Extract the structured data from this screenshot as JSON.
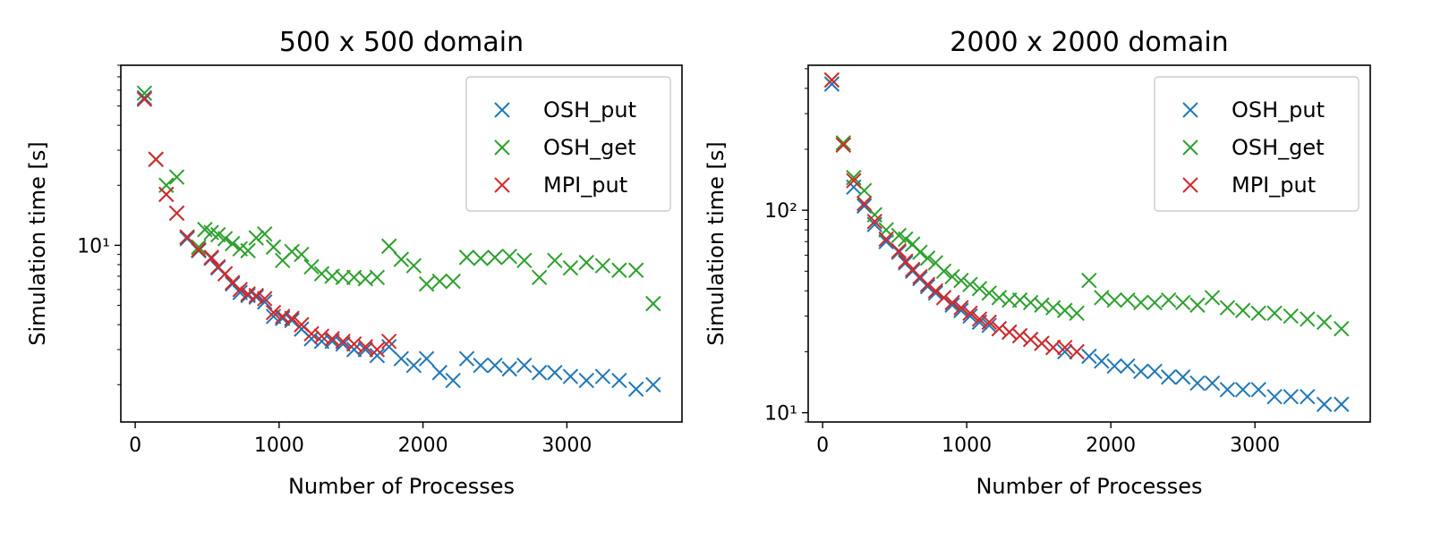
{
  "colors": {
    "OSH_put": "#1f77b4",
    "OSH_get": "#2ca02c",
    "MPI_put": "#d62728"
  },
  "chart_data": [
    {
      "type": "scatter",
      "title": "500 x 500 domain",
      "xlabel": "Number of Processes",
      "ylabel": "Simulation time [s]",
      "xscale": "linear",
      "yscale": "log",
      "xlim": [
        -100,
        3800
      ],
      "ylim": [
        1.3,
        80
      ],
      "xticks": [
        0,
        1000,
        2000,
        3000
      ],
      "xtick_labels": [
        "0",
        "1000",
        "2000",
        "3000"
      ],
      "yticks": [
        10
      ],
      "ytick_labels": [
        "10¹"
      ],
      "legend": "top-right",
      "grid": false,
      "series": [
        {
          "name": "OSH_put",
          "x": [
            64,
            144,
            216,
            289,
            361,
            441,
            529,
            576,
            625,
            676,
            729,
            784,
            841,
            900,
            961,
            1024,
            1089,
            1156,
            1225,
            1296,
            1369,
            1444,
            1521,
            1600,
            1681,
            1764,
            1849,
            1936,
            2025,
            2116,
            2209,
            2304,
            2401,
            2500,
            2601,
            2704,
            2809,
            2916,
            3025,
            3136,
            3249,
            3364,
            3481,
            3600
          ],
          "y": [
            55,
            27,
            18,
            14.5,
            10.8,
            9.4,
            8.6,
            7.7,
            7.2,
            6.4,
            5.8,
            5.6,
            5.5,
            5.2,
            4.4,
            4.3,
            4.2,
            3.8,
            3.4,
            3.3,
            3.3,
            3.2,
            3.0,
            3.0,
            2.8,
            3.1,
            2.7,
            2.5,
            2.7,
            2.3,
            2.1,
            2.7,
            2.5,
            2.5,
            2.4,
            2.5,
            2.3,
            2.3,
            2.2,
            2.1,
            2.2,
            2.1,
            1.9,
            2.0
          ]
        },
        {
          "name": "OSH_get",
          "x": [
            64,
            144,
            216,
            289,
            361,
            441,
            484,
            529,
            576,
            625,
            676,
            729,
            784,
            841,
            900,
            961,
            1024,
            1089,
            1156,
            1225,
            1296,
            1369,
            1444,
            1521,
            1600,
            1681,
            1764,
            1849,
            1936,
            2025,
            2116,
            2209,
            2304,
            2401,
            2500,
            2601,
            2704,
            2809,
            2916,
            3025,
            3136,
            3249,
            3364,
            3481,
            3600
          ],
          "y": [
            58,
            27,
            20,
            22,
            11,
            9.8,
            12,
            11.6,
            11.3,
            10.8,
            10.2,
            9.6,
            9.4,
            10.9,
            11.4,
            9.8,
            8.4,
            9.3,
            9.0,
            7.8,
            7.2,
            7.0,
            6.9,
            6.9,
            6.8,
            6.9,
            9.9,
            8.5,
            7.9,
            6.4,
            6.6,
            6.6,
            8.7,
            8.6,
            8.7,
            8.8,
            8.4,
            6.9,
            8.4,
            7.7,
            8.2,
            7.9,
            7.5,
            7.5,
            5.1
          ]
        },
        {
          "name": "MPI_put",
          "x": [
            64,
            144,
            216,
            289,
            361,
            441,
            529,
            576,
            625,
            676,
            729,
            784,
            841,
            900,
            961,
            1024,
            1089,
            1156,
            1225,
            1296,
            1369,
            1444,
            1521,
            1600,
            1681,
            1764
          ],
          "y": [
            54,
            27,
            18,
            14.5,
            11.0,
            9.5,
            8.7,
            7.8,
            7.2,
            6.5,
            6.0,
            5.7,
            5.6,
            5.4,
            4.6,
            4.4,
            4.3,
            4.0,
            3.6,
            3.5,
            3.4,
            3.3,
            3.2,
            3.1,
            3.0,
            3.3
          ]
        }
      ]
    },
    {
      "type": "scatter",
      "title": "2000 x 2000 domain",
      "xlabel": "Number of Processes",
      "ylabel": "Simulation time [s]",
      "xscale": "linear",
      "yscale": "log",
      "xlim": [
        -100,
        3800
      ],
      "ylim": [
        9,
        520
      ],
      "xticks": [
        0,
        1000,
        2000,
        3000
      ],
      "xtick_labels": [
        "0",
        "1000",
        "2000",
        "3000"
      ],
      "yticks": [
        10,
        100
      ],
      "ytick_labels": [
        "10¹",
        "10²"
      ],
      "legend": "top-right",
      "grid": false,
      "series": [
        {
          "name": "OSH_put",
          "x": [
            64,
            144,
            216,
            289,
            361,
            441,
            529,
            576,
            625,
            676,
            729,
            784,
            841,
            900,
            961,
            1024,
            1089,
            1156,
            1225,
            1296,
            1369,
            1444,
            1521,
            1600,
            1681,
            1764,
            1849,
            1936,
            2025,
            2116,
            2209,
            2304,
            2401,
            2500,
            2601,
            2704,
            2809,
            2916,
            3025,
            3136,
            3249,
            3364,
            3481,
            3600
          ],
          "y": [
            420,
            210,
            130,
            105,
            85,
            70,
            62,
            55,
            50,
            46,
            42,
            39,
            37,
            34,
            32,
            30,
            28,
            27,
            26,
            25,
            24,
            23,
            22,
            21,
            20,
            20,
            19,
            18,
            17,
            17,
            16,
            16,
            15,
            15,
            14,
            14,
            13,
            13,
            13,
            12,
            12,
            12,
            11,
            11
          ]
        },
        {
          "name": "OSH_get",
          "x": [
            64,
            144,
            216,
            289,
            361,
            441,
            529,
            576,
            625,
            676,
            729,
            784,
            841,
            900,
            961,
            1024,
            1089,
            1156,
            1225,
            1296,
            1369,
            1444,
            1521,
            1600,
            1681,
            1764,
            1849,
            1936,
            2025,
            2116,
            2209,
            2304,
            2401,
            2500,
            2601,
            2704,
            2809,
            2916,
            3025,
            3136,
            3249,
            3364,
            3481,
            3600
          ],
          "y": [
            440,
            215,
            145,
            125,
            95,
            80,
            75,
            72,
            68,
            62,
            58,
            55,
            50,
            47,
            45,
            43,
            41,
            39,
            37,
            36,
            36,
            35,
            34,
            33,
            32,
            31,
            45,
            37,
            36,
            36,
            35,
            35,
            36,
            35,
            34,
            37,
            33,
            32,
            31,
            31,
            30,
            29,
            28,
            26
          ]
        },
        {
          "name": "MPI_put",
          "x": [
            64,
            144,
            216,
            289,
            361,
            441,
            529,
            576,
            625,
            676,
            729,
            784,
            841,
            900,
            961,
            1024,
            1089,
            1156,
            1225,
            1296,
            1369,
            1444,
            1521,
            1600,
            1681,
            1764
          ],
          "y": [
            440,
            210,
            140,
            108,
            88,
            72,
            63,
            56,
            51,
            47,
            43,
            40,
            37,
            35,
            33,
            31,
            29,
            28,
            26,
            25,
            24,
            23,
            22,
            21,
            21,
            20
          ]
        }
      ]
    }
  ]
}
